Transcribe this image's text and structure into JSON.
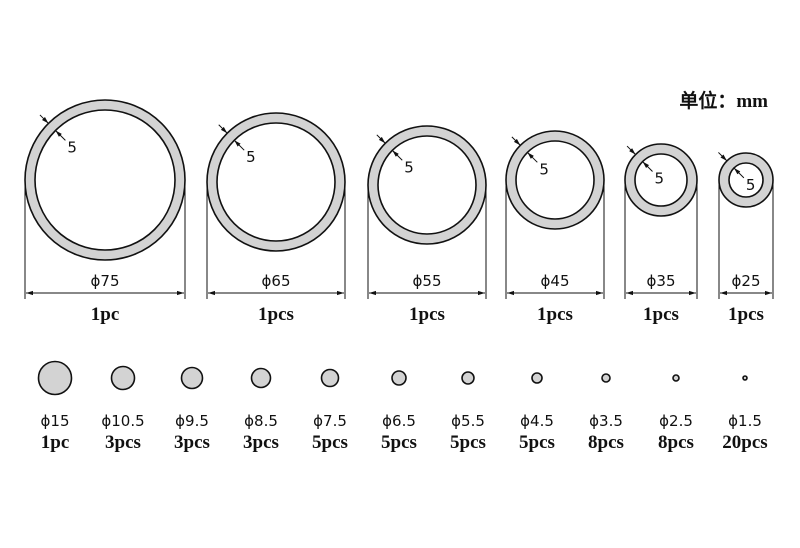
{
  "unit_label": "单位：mm",
  "colors": {
    "fill": "#d3d3d3",
    "stroke": "#111111",
    "background": "#ffffff"
  },
  "rings": [
    {
      "diameter": "ϕ75",
      "thickness": "5",
      "count": "1pc"
    },
    {
      "diameter": "ϕ65",
      "thickness": "5",
      "count": "1pcs"
    },
    {
      "diameter": "ϕ55",
      "thickness": "5",
      "count": "1pcs"
    },
    {
      "diameter": "ϕ45",
      "thickness": "5",
      "count": "1pcs"
    },
    {
      "diameter": "ϕ35",
      "thickness": "5",
      "count": "1pcs"
    },
    {
      "diameter": "ϕ25",
      "thickness": "5",
      "count": "1pcs"
    }
  ],
  "discs": [
    {
      "diameter": "ϕ15",
      "count": "1pc"
    },
    {
      "diameter": "ϕ10.5",
      "count": "3pcs"
    },
    {
      "diameter": "ϕ9.5",
      "count": "3pcs"
    },
    {
      "diameter": "ϕ8.5",
      "count": "3pcs"
    },
    {
      "diameter": "ϕ7.5",
      "count": "5pcs"
    },
    {
      "diameter": "ϕ6.5",
      "count": "5pcs"
    },
    {
      "diameter": "ϕ5.5",
      "count": "5pcs"
    },
    {
      "diameter": "ϕ4.5",
      "count": "5pcs"
    },
    {
      "diameter": "ϕ3.5",
      "count": "8pcs"
    },
    {
      "diameter": "ϕ2.5",
      "count": "8pcs"
    },
    {
      "diameter": "ϕ1.5",
      "count": "20pcs"
    }
  ]
}
